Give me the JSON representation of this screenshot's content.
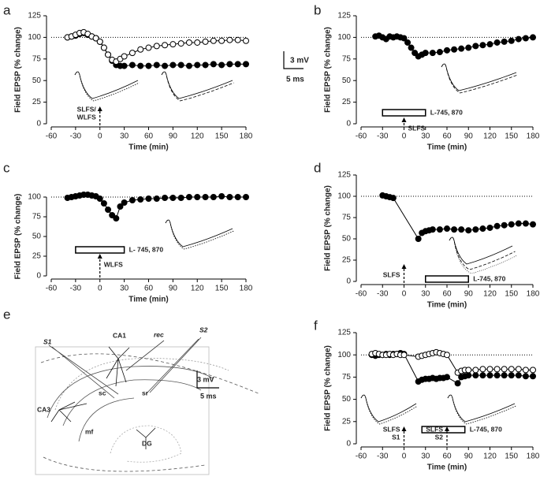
{
  "chart_data": [
    {
      "type": "scatter",
      "label": "a",
      "xlabel": "Time (min)",
      "ylabel": "Field EPSP (% change)",
      "xlim": [
        -60,
        180
      ],
      "xticks": [
        -60,
        -30,
        0,
        30,
        60,
        90,
        120,
        150,
        180
      ],
      "ylim": [
        0,
        125
      ],
      "yticks": [
        0,
        25,
        50,
        75,
        100,
        125
      ],
      "reference_line": 100,
      "x": [
        -40,
        -35,
        -30,
        -25,
        -20,
        -15,
        -10,
        -5,
        0,
        5,
        10,
        15,
        20,
        25,
        30,
        40,
        50,
        60,
        70,
        80,
        90,
        100,
        110,
        120,
        130,
        140,
        150,
        160,
        170,
        180
      ],
      "series": [
        {
          "marker": "filled",
          "color": "#000000",
          "values": [
            100,
            101,
            102,
            104,
            105,
            103,
            101,
            99,
            95,
            88,
            80,
            73,
            68,
            67,
            67,
            68,
            67,
            67,
            68,
            67,
            68,
            68,
            67,
            68,
            68,
            69,
            68,
            69,
            69,
            69
          ]
        },
        {
          "marker": "open",
          "color": "#000000",
          "values": [
            100,
            101,
            103,
            105,
            106,
            104,
            101,
            99,
            95,
            88,
            80,
            74,
            72,
            75,
            78,
            82,
            86,
            88,
            90,
            91,
            92,
            93,
            94,
            94,
            95,
            96,
            96,
            97,
            97,
            96
          ]
        }
      ],
      "stimuli": [
        {
          "x": 0,
          "label": [
            "SLFS/",
            "WLFS"
          ]
        }
      ],
      "scale_bar": [
        "3 mV",
        "5 ms"
      ]
    },
    {
      "type": "scatter",
      "label": "b",
      "xlabel": "Time (min)",
      "ylabel": "Field EPSP (% change)",
      "xlim": [
        -60,
        180
      ],
      "xticks": [
        -60,
        -30,
        0,
        30,
        60,
        90,
        120,
        150,
        180
      ],
      "ylim": [
        0,
        125
      ],
      "yticks": [
        0,
        25,
        50,
        75,
        100,
        125
      ],
      "reference_line": 100,
      "x": [
        -40,
        -35,
        -30,
        -25,
        -20,
        -15,
        -10,
        -5,
        0,
        5,
        10,
        15,
        20,
        25,
        30,
        40,
        50,
        60,
        70,
        80,
        90,
        100,
        110,
        120,
        130,
        140,
        150,
        160,
        170,
        180
      ],
      "series": [
        {
          "marker": "filled",
          "color": "#000000",
          "values": [
            101,
            102,
            100,
            98,
            101,
            100,
            101,
            100,
            99,
            94,
            88,
            82,
            78,
            80,
            82,
            82,
            83,
            85,
            86,
            87,
            88,
            90,
            91,
            92,
            94,
            95,
            96,
            98,
            99,
            100
          ]
        }
      ],
      "stimuli": [
        {
          "x": 0,
          "label": [
            "SLFS"
          ]
        }
      ],
      "drug": {
        "label": "L-745, 870",
        "range": [
          -30,
          30
        ]
      }
    },
    {
      "type": "scatter",
      "label": "c",
      "xlabel": "Time (min)",
      "ylabel": "Field EPSP (%  change)",
      "xlim": [
        -60,
        180
      ],
      "xticks": [
        -60,
        -30,
        0,
        30,
        60,
        90,
        120,
        150,
        180
      ],
      "ylim": [
        0,
        125
      ],
      "yticks": [
        0,
        25,
        50,
        75,
        100
      ],
      "reference_line": 100,
      "x": [
        -40,
        -35,
        -30,
        -25,
        -20,
        -15,
        -10,
        -5,
        0,
        5,
        10,
        15,
        20,
        25,
        30,
        40,
        50,
        60,
        70,
        80,
        90,
        100,
        110,
        120,
        130,
        140,
        150,
        160,
        170,
        180
      ],
      "series": [
        {
          "marker": "filled",
          "color": "#000000",
          "values": [
            99,
            100,
            101,
            102,
            103,
            103,
            102,
            101,
            98,
            92,
            84,
            77,
            73,
            88,
            93,
            96,
            97,
            98,
            98,
            99,
            99,
            99,
            100,
            100,
            100,
            100,
            101,
            100,
            100,
            100
          ]
        }
      ],
      "stimuli": [
        {
          "x": 0,
          "label": [
            "WLFS"
          ]
        }
      ],
      "drug": {
        "label": "L- 745, 870",
        "range": [
          -30,
          30
        ]
      }
    },
    {
      "type": "scatter",
      "label": "d",
      "xlabel": "Time (min)",
      "ylabel": "Field EPSP (%  change)",
      "xlim": [
        -60,
        180
      ],
      "xticks": [
        -60,
        -30,
        0,
        30,
        60,
        90,
        120,
        150,
        180
      ],
      "ylim": [
        0,
        125
      ],
      "yticks": [
        0,
        25,
        50,
        75,
        100,
        125
      ],
      "reference_line": 100,
      "x": [
        -30,
        -25,
        -20,
        -15,
        20,
        25,
        30,
        35,
        40,
        50,
        60,
        70,
        80,
        90,
        100,
        110,
        120,
        130,
        140,
        150,
        160,
        170,
        180
      ],
      "series": [
        {
          "marker": "filled",
          "color": "#000000",
          "values": [
            101,
            100,
            99,
            98,
            50,
            57,
            59,
            60,
            61,
            61,
            62,
            61,
            61,
            60,
            61,
            62,
            63,
            65,
            66,
            67,
            68,
            68,
            67
          ]
        }
      ],
      "stimuli": [
        {
          "x": 0,
          "label": [
            "SLFS"
          ]
        }
      ],
      "drug": {
        "label": "L-745, 870",
        "range": [
          30,
          90
        ]
      }
    },
    {
      "type": "scatter",
      "label": "f",
      "xlabel": "Time (min)",
      "ylabel": "Field EPSP (% change)",
      "xlim": [
        -60,
        180
      ],
      "xticks": [
        -60,
        -30,
        0,
        30,
        60,
        90,
        120,
        150,
        180
      ],
      "ylim": [
        0,
        125
      ],
      "yticks": [
        0,
        25,
        50,
        75,
        100,
        125
      ],
      "reference_line": 100,
      "x": [
        -45,
        -40,
        -35,
        -30,
        -25,
        -20,
        -15,
        -10,
        -5,
        0,
        20,
        25,
        30,
        35,
        40,
        45,
        50,
        55,
        60,
        75,
        80,
        85,
        90,
        100,
        110,
        120,
        130,
        140,
        150,
        160,
        170,
        180
      ],
      "series": [
        {
          "marker": "filled",
          "color": "#000000",
          "values": [
            100,
            99,
            100,
            100,
            101,
            100,
            101,
            101,
            102,
            101,
            70,
            72,
            73,
            73,
            74,
            73,
            74,
            74,
            75,
            68,
            75,
            76,
            77,
            77,
            77,
            77,
            77,
            77,
            77,
            77,
            76,
            76
          ]
        },
        {
          "marker": "open",
          "color": "#000000",
          "values": [
            101,
            102,
            101,
            100,
            100,
            101,
            100,
            101,
            100,
            100,
            98,
            99,
            100,
            101,
            102,
            103,
            102,
            101,
            100,
            80,
            82,
            83,
            83,
            83,
            84,
            84,
            84,
            84,
            84,
            84,
            83,
            83
          ]
        }
      ],
      "stimuli": [
        {
          "x": 0,
          "label": [
            "SLFS",
            "S1"
          ]
        },
        {
          "x": 60,
          "label": [
            "SLFS",
            "S2"
          ]
        }
      ],
      "drug": {
        "label": "L-745, 870",
        "range": [
          25,
          85
        ]
      }
    }
  ],
  "diagram": {
    "label": "e",
    "texts": [
      "S1",
      "CA1",
      "rec",
      "S2",
      "sc",
      "sr",
      "CA3",
      "mf",
      "DG"
    ],
    "scale_bar": [
      "3 mV",
      "5 ms"
    ]
  }
}
